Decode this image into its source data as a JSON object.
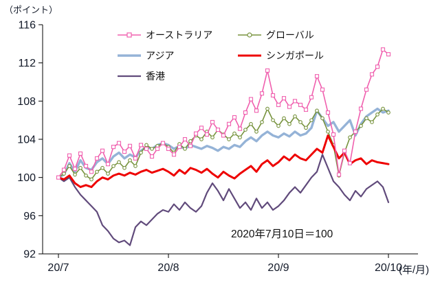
{
  "chart_data": {
    "type": "line",
    "unit_label_y": "（ポイント）",
    "unit_label_x": "(年/月)",
    "annotation": "2020年7月10日＝100",
    "colors": {
      "axis_text": "#111827",
      "axis_line": "#000000",
      "background": "#ffffff"
    },
    "y_axis": {
      "min": 92,
      "max": 116,
      "ticks": [
        92,
        96,
        100,
        104,
        108,
        112,
        116
      ]
    },
    "x_axis": {
      "tick_labels": [
        "20/7",
        "20/8",
        "20/9",
        "20/10"
      ],
      "tick_indices": [
        0,
        20,
        40,
        60
      ]
    },
    "legend_position": "top-inside",
    "grid": false,
    "draw_order": [
      "asia",
      "global",
      "hongkong",
      "singapore",
      "australia"
    ],
    "series": [
      {
        "key": "australia",
        "name": "オーストラリア",
        "color": "#f05fae",
        "width": 1.6,
        "marker": "square",
        "values": [
          100.0,
          100.8,
          102.3,
          100.9,
          102.5,
          101.2,
          100.6,
          102.0,
          102.8,
          101.4,
          103.2,
          103.6,
          102.7,
          103.3,
          102.0,
          103.4,
          103.0,
          102.2,
          103.0,
          103.6,
          103.0,
          102.4,
          103.2,
          104.0,
          103.3,
          104.6,
          105.2,
          104.5,
          105.8,
          105.0,
          104.4,
          105.6,
          106.3,
          105.1,
          106.8,
          108.2,
          107.0,
          108.8,
          111.2,
          108.6,
          107.6,
          108.3,
          107.4,
          108.0,
          107.6,
          107.1,
          108.4,
          110.6,
          109.2,
          106.8,
          104.5,
          100.3,
          102.8,
          101.5,
          104.8,
          107.2,
          109.2,
          110.8,
          111.6,
          113.4,
          112.9
        ]
      },
      {
        "key": "global",
        "name": "グローバル",
        "color": "#76923C",
        "width": 1.6,
        "marker": "circle",
        "values": [
          100.0,
          100.4,
          101.2,
          100.3,
          101.0,
          100.2,
          99.8,
          100.6,
          101.0,
          100.4,
          101.2,
          101.6,
          101.0,
          101.8,
          101.2,
          102.6,
          103.4,
          103.0,
          103.3,
          103.6,
          103.2,
          102.6,
          103.5,
          103.0,
          103.8,
          104.4,
          104.0,
          104.8,
          104.2,
          105.0,
          104.5,
          104.0,
          104.6,
          104.2,
          105.0,
          105.6,
          104.8,
          105.8,
          107.2,
          106.0,
          105.4,
          106.2,
          105.6,
          106.4,
          105.8,
          105.2,
          106.0,
          107.0,
          106.2,
          104.8,
          103.4,
          100.2,
          102.6,
          104.2,
          104.8,
          105.4,
          106.2,
          105.8,
          106.6,
          107.2,
          106.8
        ]
      },
      {
        "key": "asia",
        "name": "アジア",
        "color": "#95B3D7",
        "width": 3.4,
        "marker": "none",
        "values": [
          100.0,
          100.3,
          101.5,
          100.6,
          101.8,
          101.0,
          100.8,
          101.6,
          102.0,
          101.4,
          102.2,
          102.6,
          102.0,
          102.4,
          102.1,
          102.8,
          103.2,
          103.0,
          103.4,
          103.6,
          103.4,
          103.0,
          103.3,
          103.0,
          103.4,
          103.2,
          103.0,
          103.3,
          103.1,
          102.8,
          103.2,
          103.0,
          103.4,
          103.2,
          103.8,
          104.2,
          103.8,
          104.4,
          104.8,
          104.4,
          104.2,
          104.6,
          104.3,
          104.8,
          104.4,
          104.6,
          105.2,
          107.0,
          106.2,
          105.4,
          105.8,
          104.8,
          105.4,
          106.0,
          104.4,
          105.6,
          106.4,
          106.8,
          107.2,
          106.8,
          107.0
        ]
      },
      {
        "key": "singapore",
        "name": "シンガポール",
        "color": "#EE0000",
        "width": 3.0,
        "marker": "none",
        "values": [
          100.0,
          99.8,
          100.2,
          99.4,
          99.0,
          99.2,
          99.0,
          99.6,
          100.0,
          99.8,
          100.2,
          100.4,
          100.2,
          100.5,
          100.3,
          100.6,
          100.8,
          100.5,
          100.7,
          100.9,
          100.6,
          100.2,
          100.8,
          100.4,
          101.0,
          100.8,
          100.5,
          100.9,
          100.4,
          100.0,
          100.6,
          100.2,
          99.9,
          100.4,
          100.8,
          101.2,
          100.6,
          101.4,
          101.8,
          101.2,
          101.6,
          102.2,
          101.8,
          102.4,
          102.0,
          101.8,
          102.4,
          103.0,
          102.6,
          104.4,
          103.2,
          102.0,
          102.6,
          101.4,
          101.8,
          102.0,
          101.4,
          101.8,
          101.6,
          101.5,
          101.4
        ]
      },
      {
        "key": "hongkong",
        "name": "香港",
        "color": "#604A7B",
        "width": 2.2,
        "marker": "none",
        "values": [
          100.0,
          99.6,
          100.0,
          99.0,
          98.2,
          97.6,
          97.0,
          96.4,
          95.0,
          94.4,
          93.6,
          93.2,
          93.4,
          92.9,
          94.8,
          95.4,
          95.0,
          95.6,
          96.2,
          96.6,
          96.4,
          97.2,
          96.6,
          97.4,
          96.8,
          96.4,
          97.0,
          98.4,
          99.4,
          98.6,
          97.6,
          98.8,
          97.8,
          96.8,
          97.4,
          96.6,
          97.8,
          96.8,
          97.4,
          96.6,
          97.0,
          97.6,
          98.4,
          99.0,
          98.4,
          99.2,
          100.0,
          100.6,
          102.4,
          101.0,
          99.6,
          99.0,
          98.2,
          97.6,
          98.6,
          98.0,
          98.8,
          99.2,
          99.6,
          99.0,
          97.4
        ]
      }
    ]
  }
}
